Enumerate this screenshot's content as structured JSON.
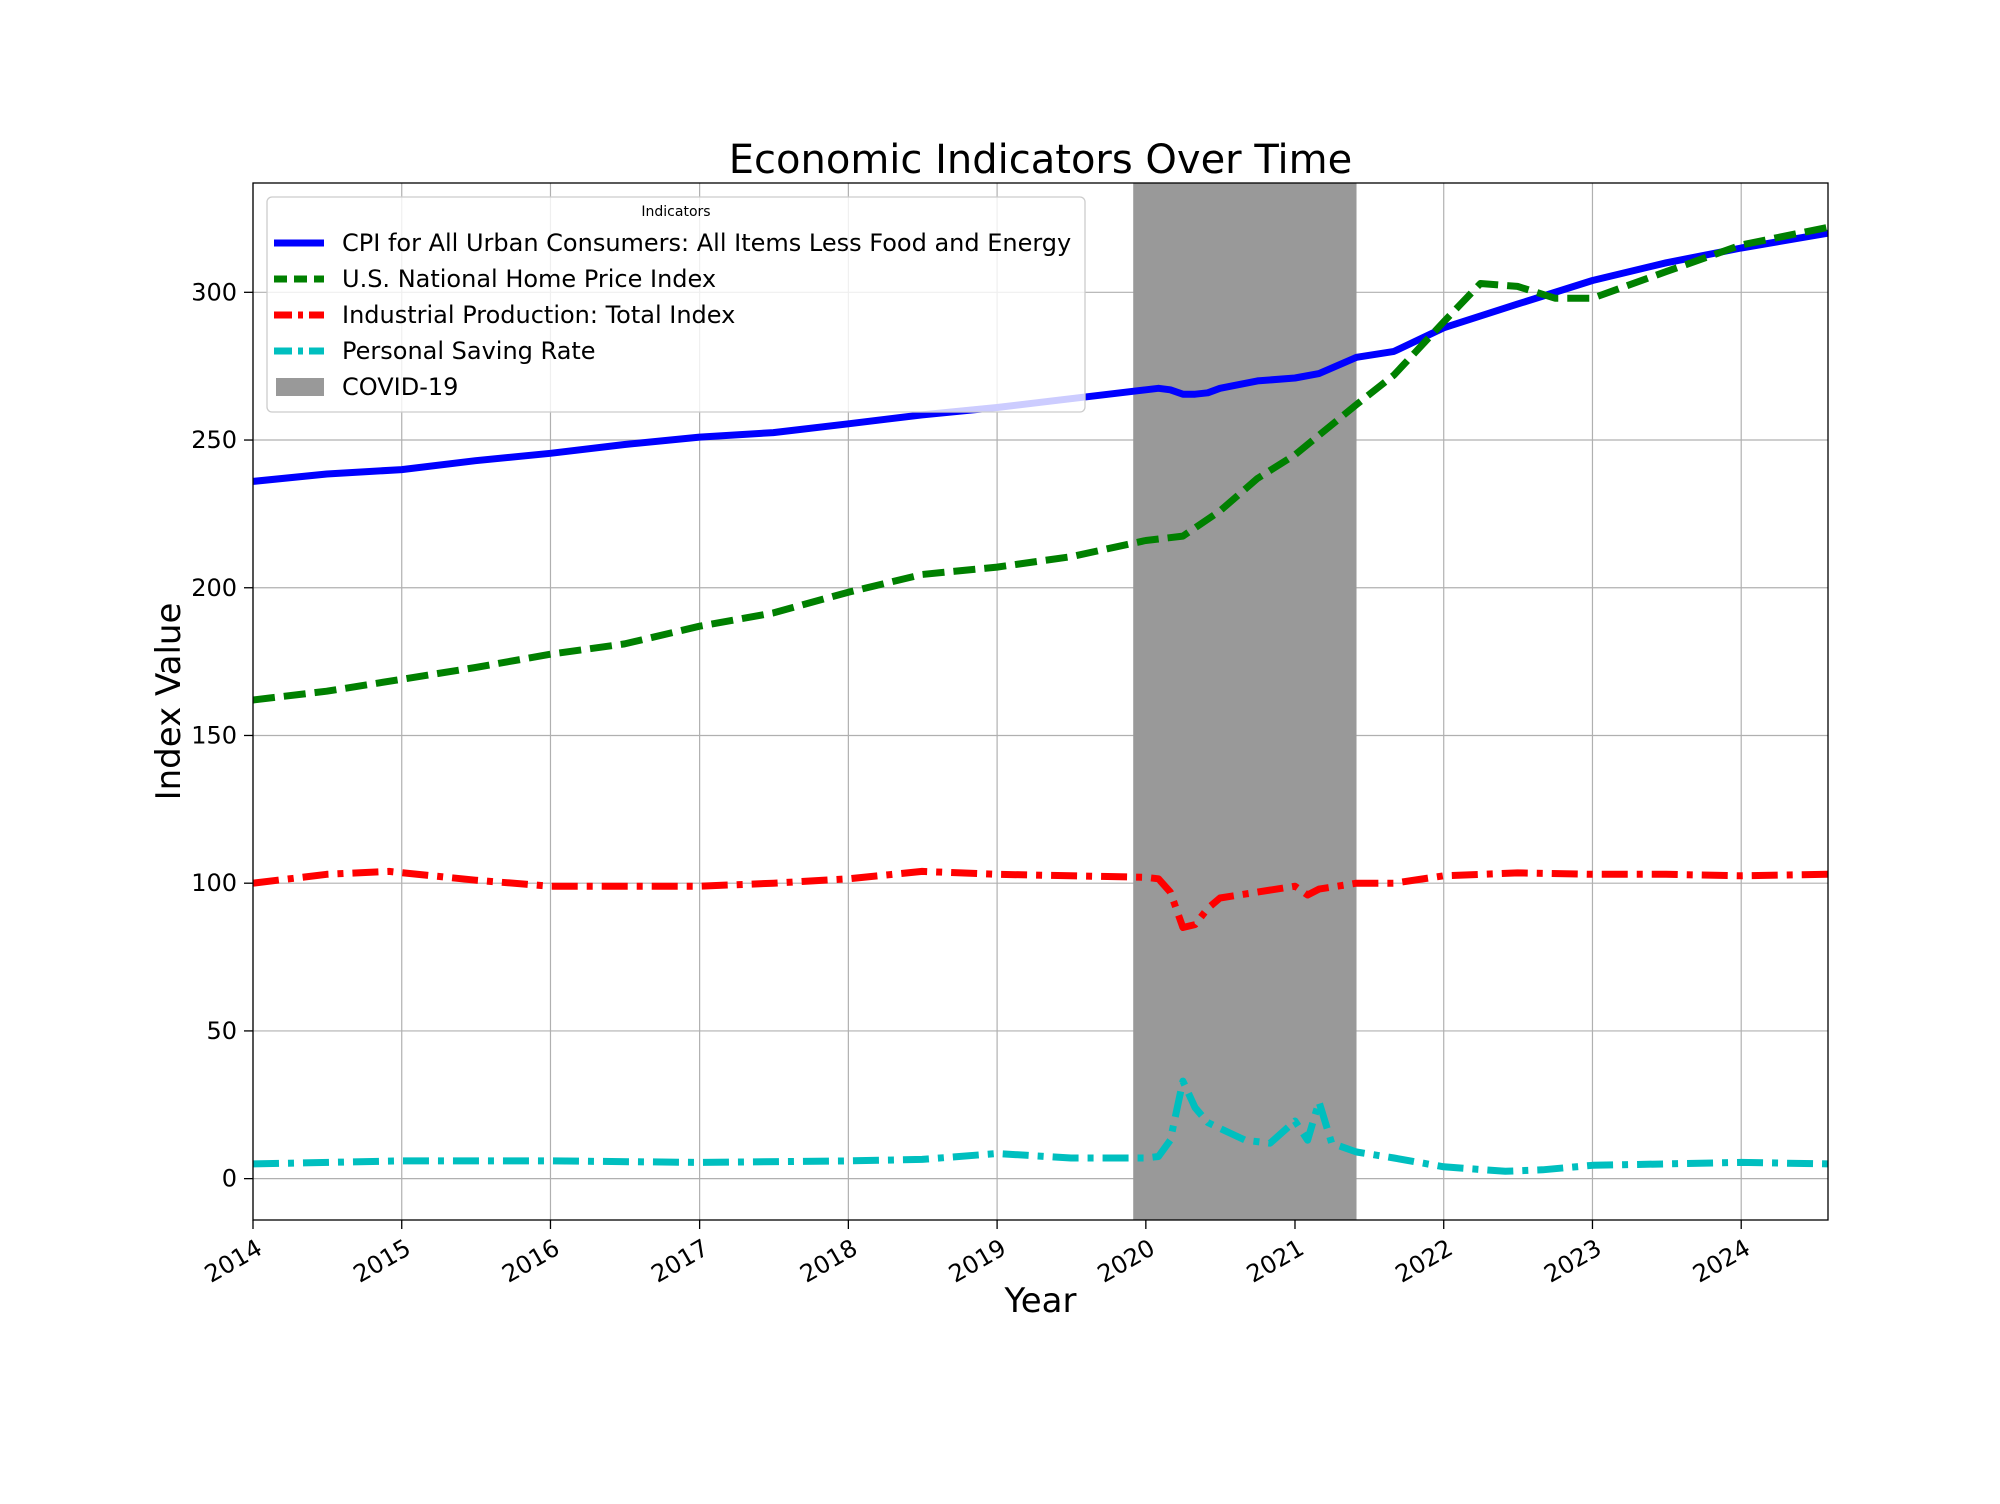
{
  "chart_data": {
    "type": "line",
    "title": "Economic Indicators Over Time",
    "xlabel": "Year",
    "ylabel": "Index Value",
    "xlim": [
      "2014-01-01",
      "2024-08-01"
    ],
    "ylim": [
      -14,
      337
    ],
    "x_ticks": [
      "2014",
      "2015",
      "2016",
      "2017",
      "2018",
      "2019",
      "2020",
      "2021",
      "2022",
      "2023",
      "2024"
    ],
    "y_ticks": [
      0,
      50,
      100,
      150,
      200,
      250,
      300
    ],
    "grid": true,
    "legend": {
      "title": "Indicators",
      "placement": "top-left",
      "entries": [
        "CPI for All Urban Consumers: All Items Less Food and Energy",
        "U.S. National Home Price Index",
        "Industrial Production: Total Index",
        "Personal Saving Rate",
        "COVID-19"
      ]
    },
    "shaded_region": {
      "label": "COVID-19",
      "start": "2019-12-01",
      "end": "2021-06-01",
      "color": "#999999"
    },
    "series": [
      {
        "name": "CPI for All Urban Consumers: All Items Less Food and Energy",
        "color": "#0000ff",
        "style": "solid",
        "x": [
          "2014-01-01",
          "2014-07-01",
          "2015-01-01",
          "2015-07-01",
          "2016-01-01",
          "2016-07-01",
          "2017-01-01",
          "2017-07-01",
          "2018-01-01",
          "2018-07-01",
          "2019-01-01",
          "2019-07-01",
          "2020-01-01",
          "2020-02-01",
          "2020-03-01",
          "2020-04-01",
          "2020-05-01",
          "2020-06-01",
          "2020-07-01",
          "2020-10-01",
          "2021-01-01",
          "2021-03-01",
          "2021-06-01",
          "2021-09-01",
          "2022-01-01",
          "2022-07-01",
          "2023-01-01",
          "2023-07-01",
          "2024-01-01",
          "2024-08-01"
        ],
        "values": [
          236,
          238.5,
          240,
          243,
          245.5,
          248.5,
          251,
          252.5,
          255.5,
          258.5,
          261,
          264,
          267,
          267.5,
          267,
          265.5,
          265.5,
          266,
          267.5,
          270,
          271,
          272.5,
          278,
          280,
          288,
          296,
          304,
          310,
          315,
          320
        ]
      },
      {
        "name": "U.S. National Home Price Index",
        "color": "#008000",
        "style": "dashed",
        "x": [
          "2014-01-01",
          "2014-07-01",
          "2015-01-01",
          "2015-07-01",
          "2016-01-01",
          "2016-07-01",
          "2017-01-01",
          "2017-07-01",
          "2018-01-01",
          "2018-07-01",
          "2019-01-01",
          "2019-07-01",
          "2020-01-01",
          "2020-04-01",
          "2020-07-01",
          "2020-10-01",
          "2021-01-01",
          "2021-06-01",
          "2021-09-01",
          "2022-01-01",
          "2022-04-01",
          "2022-07-01",
          "2022-10-01",
          "2023-01-01",
          "2023-07-01",
          "2024-01-01",
          "2024-08-01"
        ],
        "values": [
          162,
          165,
          169,
          173,
          177.5,
          181,
          187,
          191.5,
          198.5,
          204.5,
          207,
          210.5,
          216,
          217.5,
          226,
          237,
          245,
          262,
          272,
          290,
          303,
          302,
          298,
          298,
          307,
          316,
          322
        ]
      },
      {
        "name": "Industrial Production: Total Index",
        "color": "#ff0000",
        "style": "dashdot",
        "x": [
          "2014-01-01",
          "2014-07-01",
          "2014-12-01",
          "2015-07-01",
          "2016-01-01",
          "2016-07-01",
          "2017-01-01",
          "2017-07-01",
          "2018-01-01",
          "2018-07-01",
          "2019-01-01",
          "2019-07-01",
          "2020-01-01",
          "2020-02-01",
          "2020-03-01",
          "2020-04-01",
          "2020-05-01",
          "2020-06-01",
          "2020-07-01",
          "2020-10-01",
          "2021-01-01",
          "2021-02-01",
          "2021-03-01",
          "2021-06-01",
          "2021-09-01",
          "2022-01-01",
          "2022-07-01",
          "2023-01-01",
          "2023-07-01",
          "2024-01-01",
          "2024-08-01"
        ],
        "values": [
          100,
          103,
          104,
          101,
          99,
          99,
          99,
          100,
          101.5,
          104,
          103,
          102.5,
          102,
          101.5,
          97,
          85,
          86,
          91.5,
          95,
          97,
          99,
          96,
          98,
          100,
          100,
          102.5,
          103.5,
          103,
          103,
          102.5,
          103
        ]
      },
      {
        "name": "Personal Saving Rate",
        "color": "#00bfbf",
        "style": "dashdot",
        "x": [
          "2014-01-01",
          "2015-01-01",
          "2016-01-01",
          "2017-01-01",
          "2018-01-01",
          "2018-07-01",
          "2019-01-01",
          "2019-07-01",
          "2020-01-01",
          "2020-02-01",
          "2020-03-01",
          "2020-04-01",
          "2020-05-01",
          "2020-06-01",
          "2020-07-01",
          "2020-09-01",
          "2020-11-01",
          "2021-01-01",
          "2021-02-01",
          "2021-03-01",
          "2021-04-01",
          "2021-06-01",
          "2021-09-01",
          "2022-01-01",
          "2022-06-01",
          "2022-09-01",
          "2023-01-01",
          "2023-07-01",
          "2024-01-01",
          "2024-08-01"
        ],
        "values": [
          5,
          6,
          6,
          5.5,
          6,
          6.5,
          8.5,
          7,
          7,
          7.5,
          13,
          33,
          24,
          19,
          17,
          13,
          12,
          19.5,
          13,
          26,
          12,
          9,
          7,
          4,
          2.5,
          3,
          4.5,
          5,
          5.5,
          5
        ]
      }
    ]
  }
}
